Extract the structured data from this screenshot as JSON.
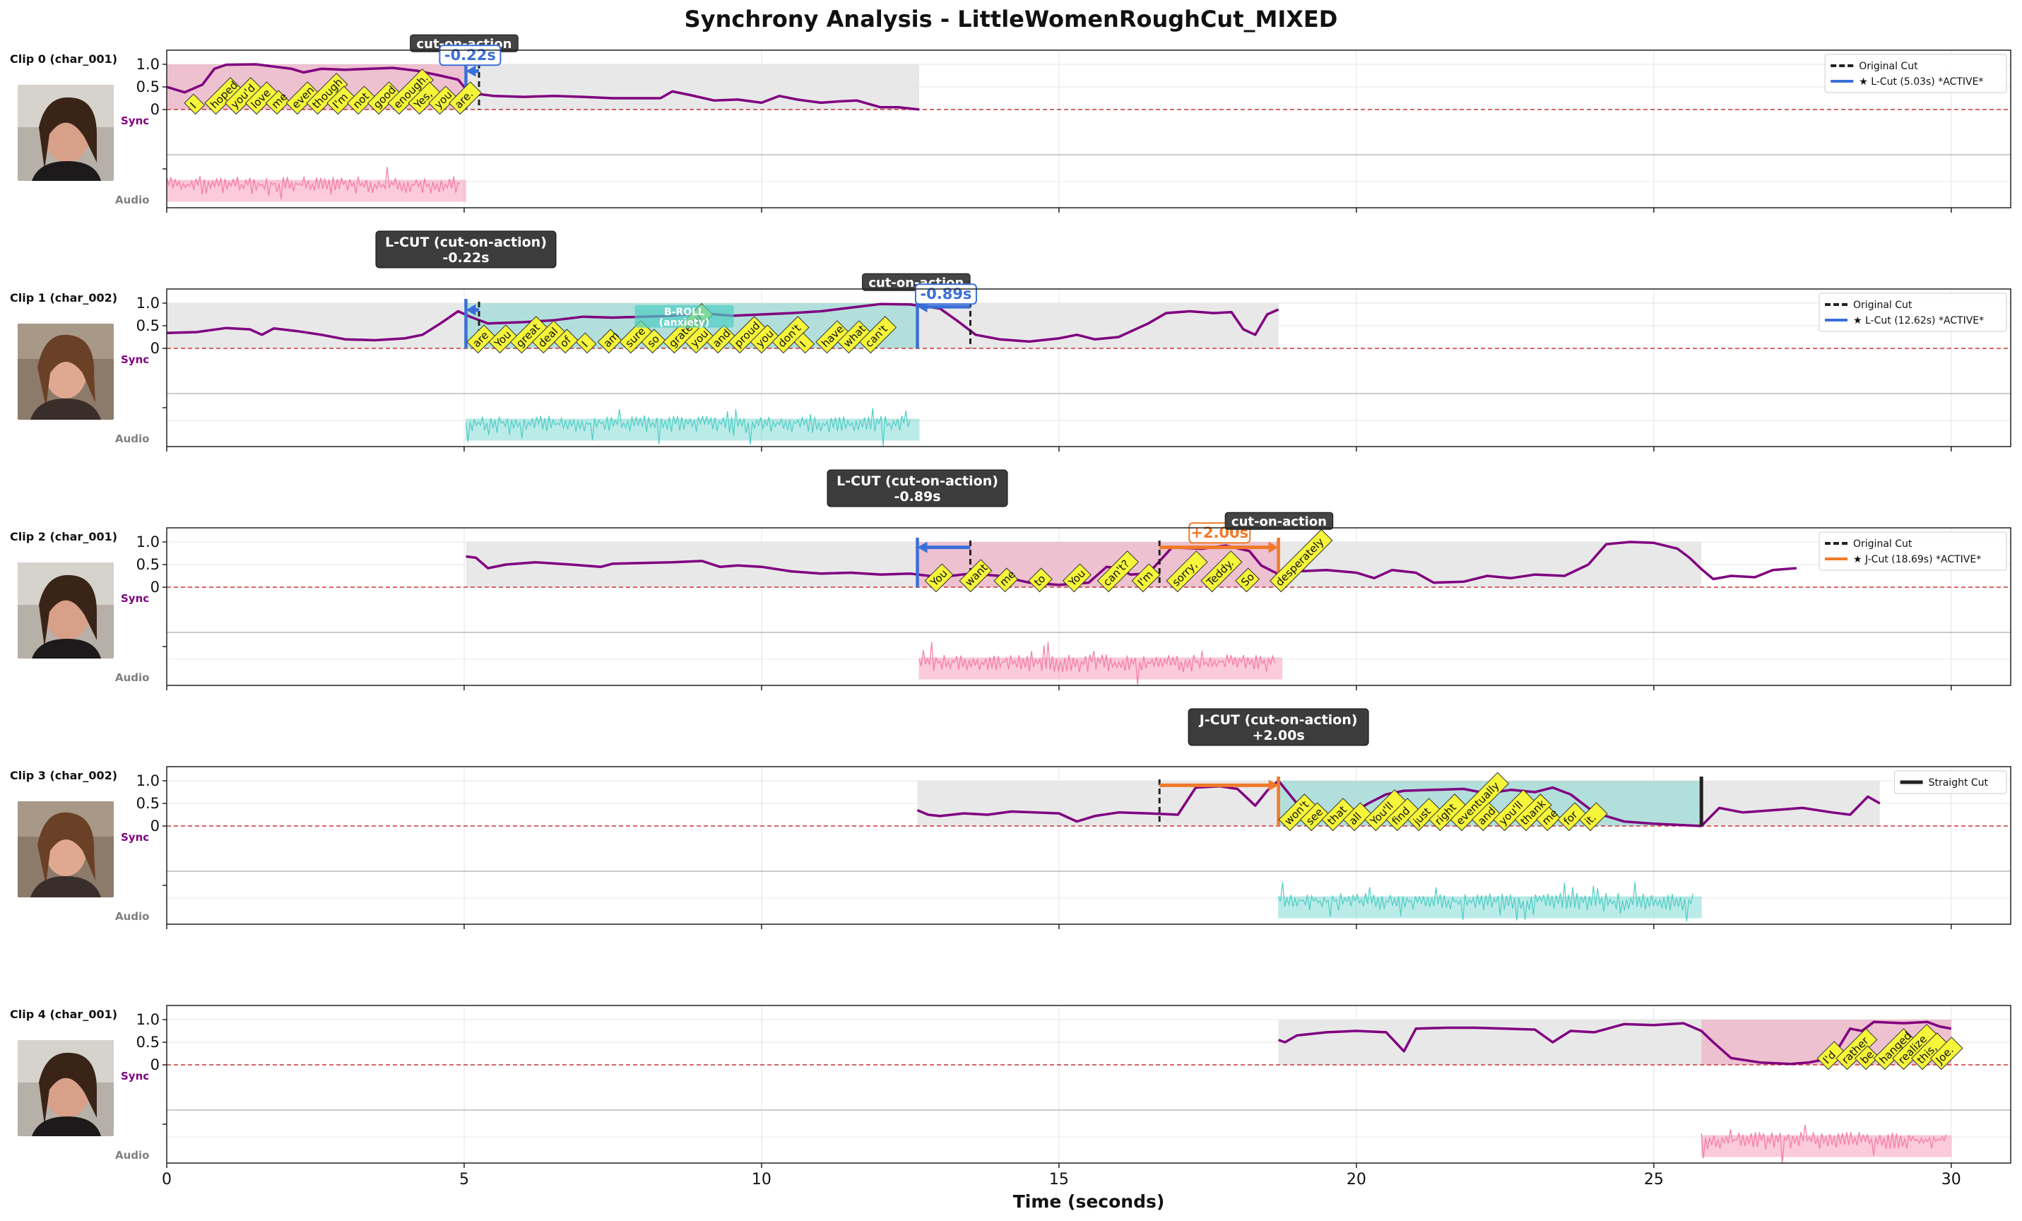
{
  "figure": {
    "title": "Synchrony Analysis - LittleWomenRoughCut_MIXED",
    "xlabel": "Time (seconds)",
    "xlim": [
      0,
      31
    ],
    "xticks": [
      0,
      5,
      10,
      15,
      20,
      25,
      30
    ],
    "sync_yticks": [
      "0",
      "0.5",
      "1.0"
    ],
    "sync_label": "Sync",
    "audio_label": "Audio"
  },
  "colors": {
    "curve": "#800080",
    "pink": "#f778a1",
    "teal": "#4ecdc4",
    "blue": "#3b6fd8",
    "orange": "#f07a2a",
    "gray_region": "#e6e6e6",
    "word_box": "#f5f53a",
    "dark_label": "#444444",
    "zero_line": "#cc3333"
  },
  "chart_data": [
    {
      "type": "line",
      "clip": "Clip 0 (char_001)",
      "color": "pink",
      "segment": [
        0,
        12.65
      ],
      "highlight": [
        0,
        5.03
      ],
      "audio": [
        0,
        5.03
      ],
      "curve": [
        [
          0,
          0.5
        ],
        [
          0.3,
          0.38
        ],
        [
          0.6,
          0.55
        ],
        [
          0.8,
          0.9
        ],
        [
          1.0,
          0.99
        ],
        [
          1.5,
          1.0
        ],
        [
          1.8,
          0.95
        ],
        [
          2.1,
          0.9
        ],
        [
          2.3,
          0.82
        ],
        [
          2.6,
          0.9
        ],
        [
          3.0,
          0.88
        ],
        [
          3.4,
          0.9
        ],
        [
          3.8,
          0.92
        ],
        [
          4.2,
          0.86
        ],
        [
          4.6,
          0.75
        ],
        [
          4.9,
          0.66
        ],
        [
          5.0,
          0.5
        ],
        [
          5.2,
          0.35
        ],
        [
          5.5,
          0.3
        ],
        [
          6.0,
          0.28
        ],
        [
          6.5,
          0.3
        ],
        [
          7.0,
          0.28
        ],
        [
          7.5,
          0.25
        ],
        [
          8.0,
          0.25
        ],
        [
          8.3,
          0.25
        ],
        [
          8.5,
          0.4
        ],
        [
          8.8,
          0.32
        ],
        [
          9.2,
          0.2
        ],
        [
          9.6,
          0.22
        ],
        [
          10.0,
          0.15
        ],
        [
          10.3,
          0.3
        ],
        [
          10.6,
          0.22
        ],
        [
          11.0,
          0.15
        ],
        [
          11.3,
          0.18
        ],
        [
          11.6,
          0.2
        ],
        [
          12.0,
          0.05
        ],
        [
          12.3,
          0.05
        ],
        [
          12.65,
          0.0
        ]
      ],
      "markers": [
        {
          "kind": "orig",
          "t": 5.25
        },
        {
          "kind": "lcut",
          "t": 5.03,
          "color": "blue"
        }
      ],
      "arrows": [
        {
          "from": 5.25,
          "to": 5.03,
          "color": "blue",
          "y": 0.85
        }
      ],
      "labels": [
        {
          "kind": "dark",
          "text": "cut-on-action",
          "t": 5.0,
          "y": 1.45
        },
        {
          "kind": "delta",
          "text": "-0.22s",
          "t": 5.1,
          "y": 1.2,
          "color": "blue"
        }
      ],
      "words": [
        "I",
        "hoped",
        "you'd",
        "love",
        "me",
        "even",
        "though",
        "I'm",
        "not",
        "good",
        "enough.",
        "Yes,",
        "you",
        "are."
      ],
      "word_range": [
        0.45,
        4.9
      ],
      "legend": [
        {
          "style": "dash",
          "color": "#222222",
          "label": "Original Cut"
        },
        {
          "style": "solid",
          "color": "blue",
          "label": "★ L-Cut (5.03s) *ACTIVE*"
        }
      ]
    },
    {
      "type": "line",
      "clip": "Clip 1 (char_002)",
      "color": "teal",
      "segment": [
        0,
        18.69
      ],
      "highlight": [
        5.03,
        12.62
      ],
      "audio": [
        5.03,
        12.65
      ],
      "curve": [
        [
          0,
          0.34
        ],
        [
          0.5,
          0.36
        ],
        [
          1.0,
          0.45
        ],
        [
          1.4,
          0.42
        ],
        [
          1.6,
          0.3
        ],
        [
          1.8,
          0.44
        ],
        [
          2.2,
          0.38
        ],
        [
          2.6,
          0.3
        ],
        [
          3.0,
          0.2
        ],
        [
          3.5,
          0.18
        ],
        [
          4.0,
          0.22
        ],
        [
          4.3,
          0.3
        ],
        [
          4.6,
          0.55
        ],
        [
          4.9,
          0.82
        ],
        [
          5.1,
          0.7
        ],
        [
          5.4,
          0.55
        ],
        [
          6.0,
          0.58
        ],
        [
          6.5,
          0.62
        ],
        [
          7.0,
          0.7
        ],
        [
          7.5,
          0.68
        ],
        [
          8.0,
          0.7
        ],
        [
          8.5,
          0.72
        ],
        [
          9.0,
          0.78
        ],
        [
          9.5,
          0.72
        ],
        [
          10.0,
          0.75
        ],
        [
          10.5,
          0.78
        ],
        [
          11.0,
          0.82
        ],
        [
          11.5,
          0.9
        ],
        [
          12.0,
          0.98
        ],
        [
          12.5,
          0.97
        ],
        [
          13.0,
          0.88
        ],
        [
          13.3,
          0.6
        ],
        [
          13.6,
          0.3
        ],
        [
          14.0,
          0.2
        ],
        [
          14.5,
          0.15
        ],
        [
          15.0,
          0.22
        ],
        [
          15.3,
          0.3
        ],
        [
          15.6,
          0.2
        ],
        [
          16.0,
          0.25
        ],
        [
          16.5,
          0.55
        ],
        [
          16.8,
          0.78
        ],
        [
          17.2,
          0.82
        ],
        [
          17.6,
          0.78
        ],
        [
          17.9,
          0.8
        ],
        [
          18.1,
          0.42
        ],
        [
          18.3,
          0.3
        ],
        [
          18.5,
          0.75
        ],
        [
          18.69,
          0.86
        ]
      ],
      "markers": [
        {
          "kind": "orig",
          "t": 5.25
        },
        {
          "kind": "lcut",
          "t": 5.03,
          "color": "blue"
        },
        {
          "kind": "orig",
          "t": 13.51
        },
        {
          "kind": "lcut",
          "t": 12.62,
          "color": "blue"
        }
      ],
      "arrows": [
        {
          "from": 5.25,
          "to": 5.03,
          "color": "blue",
          "y": 0.85
        },
        {
          "from": 13.51,
          "to": 12.62,
          "color": "blue",
          "y": 0.92
        }
      ],
      "labels": [
        {
          "kind": "dark-above",
          "text": "L-CUT (cut-on-action)",
          "text2": "-0.22s",
          "t": 5.03
        },
        {
          "kind": "dark",
          "text": "cut-on-action",
          "t": 12.6,
          "y": 1.45
        },
        {
          "kind": "delta",
          "text": "-0.89s",
          "t": 13.1,
          "y": 1.2,
          "color": "blue"
        },
        {
          "kind": "broll",
          "text": "B-ROLL",
          "text2": "(anxiety)",
          "t": 8.7,
          "y": 0.8
        }
      ],
      "words": [
        "are",
        "You",
        "great",
        "deal",
        "of",
        "I",
        "am",
        "sure",
        "so",
        "grateful",
        "you",
        "and",
        "proud",
        "you",
        "don't",
        "I",
        "have",
        "what",
        "can't"
      ],
      "word_range": [
        5.2,
        11.8
      ],
      "legend": [
        {
          "style": "dash",
          "color": "#222222",
          "label": "Original Cut"
        },
        {
          "style": "solid",
          "color": "blue",
          "label": "★ L-Cut (12.62s) *ACTIVE*"
        }
      ]
    },
    {
      "type": "line",
      "clip": "Clip 2 (char_001)",
      "color": "pink",
      "segment": [
        5.03,
        25.8
      ],
      "highlight": [
        12.62,
        18.69
      ],
      "audio": [
        12.65,
        18.75
      ],
      "curve": [
        [
          5.03,
          0.68
        ],
        [
          5.2,
          0.65
        ],
        [
          5.4,
          0.42
        ],
        [
          5.7,
          0.5
        ],
        [
          6.2,
          0.55
        ],
        [
          6.8,
          0.5
        ],
        [
          7.3,
          0.45
        ],
        [
          7.5,
          0.52
        ],
        [
          8.5,
          0.55
        ],
        [
          9.0,
          0.58
        ],
        [
          9.3,
          0.45
        ],
        [
          9.6,
          0.48
        ],
        [
          10.0,
          0.45
        ],
        [
          10.5,
          0.35
        ],
        [
          11.0,
          0.3
        ],
        [
          11.5,
          0.32
        ],
        [
          12.0,
          0.28
        ],
        [
          12.5,
          0.3
        ],
        [
          13.0,
          0.22
        ],
        [
          13.5,
          0.3
        ],
        [
          14.0,
          0.25
        ],
        [
          14.5,
          0.1
        ],
        [
          15.0,
          0.05
        ],
        [
          15.5,
          0.1
        ],
        [
          15.8,
          0.45
        ],
        [
          16.0,
          0.42
        ],
        [
          16.2,
          0.28
        ],
        [
          16.5,
          0.3
        ],
        [
          16.9,
          0.88
        ],
        [
          17.4,
          0.85
        ],
        [
          17.8,
          0.92
        ],
        [
          18.2,
          0.8
        ],
        [
          18.4,
          0.48
        ],
        [
          18.7,
          0.28
        ],
        [
          19.0,
          0.35
        ],
        [
          19.5,
          0.38
        ],
        [
          20.0,
          0.32
        ],
        [
          20.3,
          0.2
        ],
        [
          20.6,
          0.38
        ],
        [
          21.0,
          0.32
        ],
        [
          21.3,
          0.1
        ],
        [
          21.8,
          0.12
        ],
        [
          22.2,
          0.25
        ],
        [
          22.6,
          0.2
        ],
        [
          23.0,
          0.28
        ],
        [
          23.5,
          0.25
        ],
        [
          23.9,
          0.5
        ],
        [
          24.2,
          0.95
        ],
        [
          24.6,
          1.0
        ],
        [
          25.0,
          0.98
        ],
        [
          25.4,
          0.85
        ],
        [
          25.6,
          0.65
        ],
        [
          25.8,
          0.4
        ],
        [
          26.0,
          0.18
        ],
        [
          26.3,
          0.25
        ],
        [
          26.7,
          0.22
        ],
        [
          27.0,
          0.38
        ],
        [
          27.4,
          0.42
        ]
      ],
      "markers": [
        {
          "kind": "orig",
          "t": 13.51
        },
        {
          "kind": "lcut",
          "t": 12.62,
          "color": "blue"
        },
        {
          "kind": "orig",
          "t": 16.69
        },
        {
          "kind": "jcut",
          "t": 18.69,
          "color": "orange"
        }
      ],
      "arrows": [
        {
          "from": 13.51,
          "to": 12.62,
          "color": "blue",
          "y": 0.88
        },
        {
          "from": 16.69,
          "to": 18.69,
          "color": "orange",
          "y": 0.88
        }
      ],
      "labels": [
        {
          "kind": "dark-above",
          "text": "L-CUT (cut-on-action)",
          "text2": "-0.89s",
          "t": 12.62
        },
        {
          "kind": "delta",
          "text": "+2.00s",
          "t": 17.7,
          "y": 1.2,
          "color": "orange"
        },
        {
          "kind": "dark",
          "text": "cut-on-action",
          "t": 18.7,
          "y": 1.45
        }
      ],
      "words": [
        "You",
        "want",
        "me",
        "to",
        "You",
        "can't?",
        "I'm",
        "sorry,",
        "Teddy.",
        "So",
        "desperately"
      ],
      "word_range": [
        12.9,
        18.7
      ],
      "legend": [
        {
          "style": "dash",
          "color": "#222222",
          "label": "Original Cut"
        },
        {
          "style": "solid",
          "color": "orange",
          "label": "★ J-Cut (18.69s) *ACTIVE*"
        }
      ]
    },
    {
      "type": "line",
      "clip": "Clip 3 (char_002)",
      "color": "teal",
      "segment": [
        12.62,
        28.8
      ],
      "highlight": [
        18.69,
        25.8
      ],
      "audio": [
        18.69,
        25.8
      ],
      "curve": [
        [
          12.62,
          0.35
        ],
        [
          12.8,
          0.25
        ],
        [
          13.0,
          0.22
        ],
        [
          13.4,
          0.28
        ],
        [
          13.8,
          0.25
        ],
        [
          14.2,
          0.32
        ],
        [
          14.6,
          0.3
        ],
        [
          15.0,
          0.28
        ],
        [
          15.3,
          0.1
        ],
        [
          15.6,
          0.22
        ],
        [
          16.0,
          0.3
        ],
        [
          16.5,
          0.28
        ],
        [
          17.0,
          0.25
        ],
        [
          17.3,
          0.85
        ],
        [
          17.7,
          0.88
        ],
        [
          18.0,
          0.82
        ],
        [
          18.3,
          0.45
        ],
        [
          18.5,
          0.78
        ],
        [
          18.69,
          1.0
        ],
        [
          19.0,
          0.5
        ],
        [
          19.4,
          0.3
        ],
        [
          19.8,
          0.18
        ],
        [
          20.2,
          0.5
        ],
        [
          20.5,
          0.7
        ],
        [
          20.8,
          0.78
        ],
        [
          21.3,
          0.8
        ],
        [
          21.8,
          0.82
        ],
        [
          22.2,
          0.72
        ],
        [
          22.6,
          0.8
        ],
        [
          23.0,
          0.75
        ],
        [
          23.3,
          0.85
        ],
        [
          23.6,
          0.7
        ],
        [
          24.0,
          0.3
        ],
        [
          24.5,
          0.1
        ],
        [
          25.0,
          0.05
        ],
        [
          25.5,
          0.02
        ],
        [
          25.8,
          0.0
        ],
        [
          26.1,
          0.4
        ],
        [
          26.5,
          0.3
        ],
        [
          27.0,
          0.35
        ],
        [
          27.5,
          0.4
        ],
        [
          28.0,
          0.3
        ],
        [
          28.3,
          0.25
        ],
        [
          28.6,
          0.65
        ],
        [
          28.8,
          0.5
        ]
      ],
      "markers": [
        {
          "kind": "orig",
          "t": 16.69
        },
        {
          "kind": "jcut",
          "t": 18.69,
          "color": "orange"
        },
        {
          "kind": "straight",
          "t": 25.8
        }
      ],
      "arrows": [
        {
          "from": 16.69,
          "to": 18.69,
          "color": "orange",
          "y": 0.9
        }
      ],
      "labels": [
        {
          "kind": "dark-above",
          "text": "J-CUT (cut-on-action)",
          "text2": "+2.00s",
          "t": 18.69
        }
      ],
      "words": [
        "won't",
        "see",
        "that",
        "all",
        "You'll",
        "find",
        "just",
        "right",
        "eventually",
        "and",
        "you'll",
        "thank",
        "me",
        "for",
        "it."
      ],
      "word_range": [
        18.85,
        23.9
      ],
      "legend": [
        {
          "style": "thick",
          "color": "#222222",
          "label": "Straight Cut"
        }
      ]
    },
    {
      "type": "line",
      "clip": "Clip 4 (char_001)",
      "color": "pink",
      "segment": [
        18.69,
        30.0
      ],
      "highlight": [
        25.8,
        30.0
      ],
      "audio": [
        25.8,
        30.0
      ],
      "curve": [
        [
          18.69,
          0.55
        ],
        [
          18.8,
          0.5
        ],
        [
          19.0,
          0.65
        ],
        [
          19.5,
          0.72
        ],
        [
          20.0,
          0.75
        ],
        [
          20.5,
          0.72
        ],
        [
          20.8,
          0.3
        ],
        [
          21.0,
          0.8
        ],
        [
          21.5,
          0.82
        ],
        [
          22.0,
          0.82
        ],
        [
          22.5,
          0.8
        ],
        [
          23.0,
          0.78
        ],
        [
          23.3,
          0.5
        ],
        [
          23.6,
          0.75
        ],
        [
          24.0,
          0.72
        ],
        [
          24.5,
          0.9
        ],
        [
          25.0,
          0.88
        ],
        [
          25.5,
          0.92
        ],
        [
          25.8,
          0.75
        ],
        [
          26.0,
          0.5
        ],
        [
          26.3,
          0.15
        ],
        [
          26.8,
          0.05
        ],
        [
          27.3,
          0.02
        ],
        [
          27.6,
          0.05
        ],
        [
          28.0,
          0.15
        ],
        [
          28.3,
          0.8
        ],
        [
          28.5,
          0.75
        ],
        [
          28.7,
          0.95
        ],
        [
          29.2,
          0.92
        ],
        [
          29.6,
          0.95
        ],
        [
          29.8,
          0.85
        ],
        [
          30.0,
          0.8
        ]
      ],
      "markers": [],
      "arrows": [],
      "labels": [],
      "words": [
        "I'd",
        "rather",
        "be",
        "hanged",
        "realize",
        "this,",
        "Joe."
      ],
      "word_range": [
        27.9,
        29.8
      ],
      "legend": []
    }
  ]
}
